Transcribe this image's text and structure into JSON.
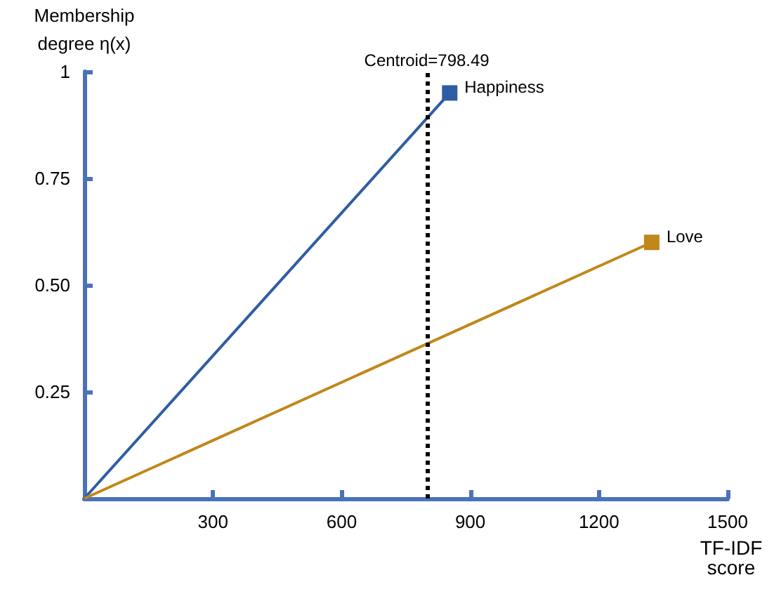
{
  "chart_data": {
    "type": "line",
    "xlabel": "TF-IDF score",
    "ylabel": "Membership degree η(x)",
    "series": [
      {
        "name": "Happiness",
        "color": "#2e5da3",
        "x": [
          0,
          852
        ],
        "values": [
          0,
          0.95
        ]
      },
      {
        "name": "Love",
        "color": "#c0871a",
        "x": [
          0,
          1323
        ],
        "values": [
          0,
          0.6
        ]
      }
    ],
    "xlim": [
      0,
      1500
    ],
    "xticks": [
      300,
      600,
      900,
      1200,
      1500
    ],
    "ylim": [
      0,
      1
    ],
    "yticks": [
      0.25,
      {
        "value": 0.5,
        "label": "0.50"
      },
      0.75,
      1
    ],
    "ref_lines": [
      {
        "axis": "x",
        "value": 798.49,
        "label": "Centroid=798.49",
        "color": "#000000",
        "line_style": "dotted"
      }
    ],
    "grid": false,
    "legend": false,
    "marker": "square",
    "line_style": "solid"
  }
}
